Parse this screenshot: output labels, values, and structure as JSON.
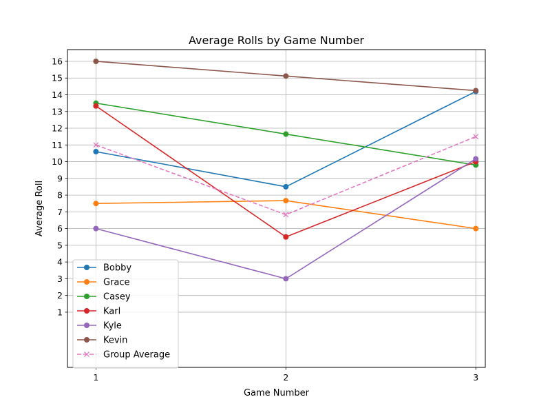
{
  "chart_data": {
    "type": "line",
    "title": "Average Rolls by Game Number",
    "xlabel": "Game Number",
    "ylabel": "Average Roll",
    "x": [
      1,
      2,
      3
    ],
    "x_ticks": [
      "1",
      "2",
      "3"
    ],
    "y_ticks": [
      1,
      2,
      3,
      4,
      5,
      6,
      7,
      8,
      9,
      10,
      11,
      12,
      13,
      14,
      15,
      16
    ],
    "xlim": [
      0.85,
      3.05
    ],
    "ylim": [
      -2.3,
      16.7
    ],
    "grid": true,
    "legend_position": "lower-left",
    "series": [
      {
        "name": "Bobby",
        "color": "#1f77b4",
        "marker": "circle",
        "dashed": false,
        "values": [
          10.6,
          8.5,
          14.2
        ]
      },
      {
        "name": "Grace",
        "color": "#ff7f0e",
        "marker": "circle",
        "dashed": false,
        "values": [
          7.5,
          7.67,
          6.0
        ]
      },
      {
        "name": "Casey",
        "color": "#2ca02c",
        "marker": "circle",
        "dashed": false,
        "values": [
          13.5,
          11.65,
          9.8
        ]
      },
      {
        "name": "Karl",
        "color": "#d62728",
        "marker": "circle",
        "dashed": false,
        "values": [
          13.33,
          5.5,
          10.0
        ]
      },
      {
        "name": "Kyle",
        "color": "#9467bd",
        "marker": "circle",
        "dashed": false,
        "values": [
          6.0,
          3.0,
          10.17
        ]
      },
      {
        "name": "Kevin",
        "color": "#8c564b",
        "marker": "circle",
        "dashed": false,
        "values": [
          16.0,
          15.12,
          14.25
        ]
      },
      {
        "name": "Group Average",
        "color": "#e377c2",
        "marker": "x",
        "dashed": true,
        "values": [
          11.0,
          6.83,
          11.5
        ]
      }
    ]
  }
}
